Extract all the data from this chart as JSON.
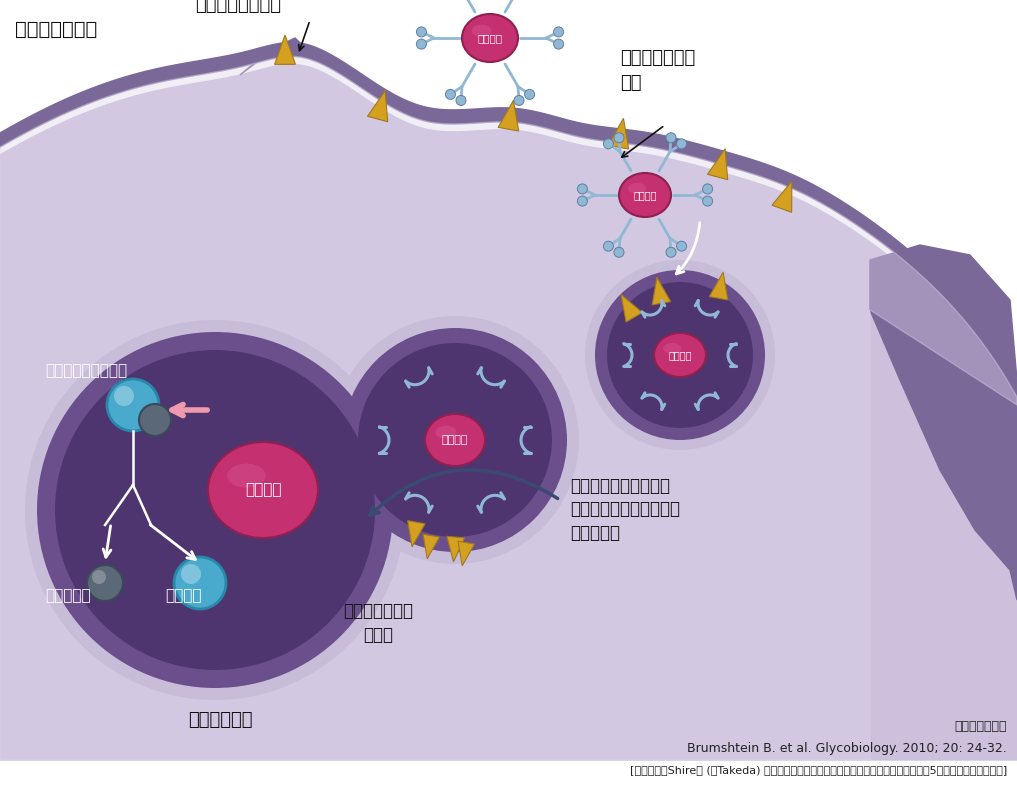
{
  "background_color": "#ffffff",
  "cell_body_color": "#ccc0dd",
  "cell_inner_color": "#ddd5ea",
  "membrane_color": "#7a6899",
  "membrane_dark_color": "#6a5888",
  "lysosome_border_color": "#c8bdd8",
  "lysosome_fill_color": "#6b4f8c",
  "lysosome_dark_color": "#4e3570",
  "endosome_fill_color": "#6b4f8c",
  "endosome_dark_color": "#4e3570",
  "endosome_border_color": "#c8bdd8",
  "enzyme_main_color": "#c43070",
  "enzyme_highlight_color": "#e060a0",
  "enzyme_dark_color": "#902050",
  "chain_color": "#90b8d5",
  "receptor_color": "#d4a020",
  "receptor_edge": "#a07820",
  "blue_sphere_color": "#4aaace",
  "blue_sphere_edge": "#2888aa",
  "dark_sphere_color": "#5a6878",
  "dark_sphere_edge": "#3a4858",
  "pink_arrow_color": "#f09ab0",
  "white_arrow_color": "#ffffff",
  "dark_arrow_color": "#3a4a70",
  "text_color": "#111111",
  "enzyme_label": "ビプリブ",
  "macrophage_label": "マクロファージ",
  "mannose_receptor_label": "マンノース受容体",
  "high_mannose_label": "高マンノース型\n糖鎖",
  "glucocerebroside_label": "グルコセレブロシド",
  "glucose_label": "グルコース",
  "ceramide_label": "セラミド",
  "lysosome_label": "ライソゾーム",
  "transport_label": "ライソゾームへ\n　輸送",
  "endocytosis_label": "エンドサイトーシスに\nよりマクロファージ内に\n取込まれる",
  "ref1": "承認時評価資料",
  "ref2": "Brumshtein B. et al. Glycobiology. 2010; 20: 24-32.",
  "ref3": "[本試験は、Shire社 (現Takeda) の資金提供により実施されました。本論文の著者のうち5名は同社の社員です。]"
}
